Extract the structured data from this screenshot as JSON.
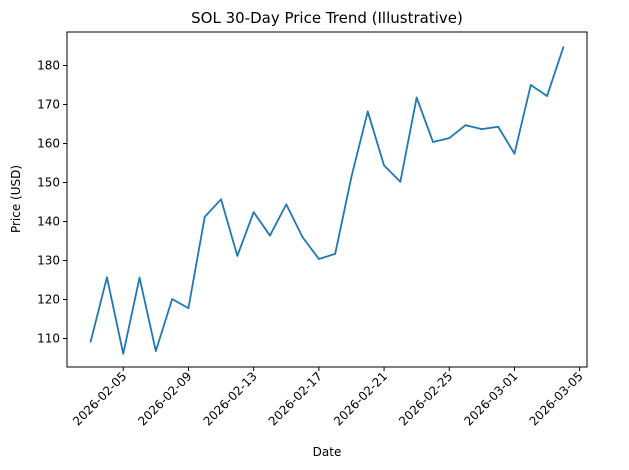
{
  "chart_data": {
    "type": "line",
    "title": "SOL 30-Day Price Trend (Illustrative)",
    "xlabel": "Date",
    "ylabel": "Price (USD)",
    "x": [
      "2026-02-03",
      "2026-02-04",
      "2026-02-05",
      "2026-02-06",
      "2026-02-07",
      "2026-02-08",
      "2026-02-09",
      "2026-02-10",
      "2026-02-11",
      "2026-02-12",
      "2026-02-13",
      "2026-02-14",
      "2026-02-15",
      "2026-02-16",
      "2026-02-17",
      "2026-02-18",
      "2026-02-19",
      "2026-02-20",
      "2026-02-21",
      "2026-02-22",
      "2026-02-23",
      "2026-02-24",
      "2026-02-25",
      "2026-02-26",
      "2026-02-27",
      "2026-02-28",
      "2026-03-01",
      "2026-03-02",
      "2026-03-03",
      "2026-03-04"
    ],
    "series": [
      {
        "name": "",
        "values": [
          109.2,
          125.7,
          106.1,
          125.6,
          106.8,
          120.1,
          117.8,
          141.2,
          145.7,
          131.2,
          142.4,
          136.4,
          144.4,
          136.0,
          130.4,
          131.7,
          151.5,
          168.2,
          154.4,
          150.2,
          171.8,
          160.4,
          161.4,
          164.7,
          163.7,
          164.3,
          157.4,
          175.0,
          172.2,
          184.7
        ]
      }
    ],
    "x_ticks": [
      "2026-02-05",
      "2026-02-09",
      "2026-02-13",
      "2026-02-17",
      "2026-02-21",
      "2026-02-25",
      "2026-03-01",
      "2026-03-05"
    ],
    "y_ticks": [
      110,
      120,
      130,
      140,
      150,
      160,
      170,
      180
    ],
    "xlim": [
      "2026-02-01T13:12:00",
      "2026-03-05T10:48:00"
    ],
    "ylim": [
      102.7,
      188.6
    ],
    "grid": false,
    "legend": "none",
    "line_color": "#1f77b4"
  }
}
